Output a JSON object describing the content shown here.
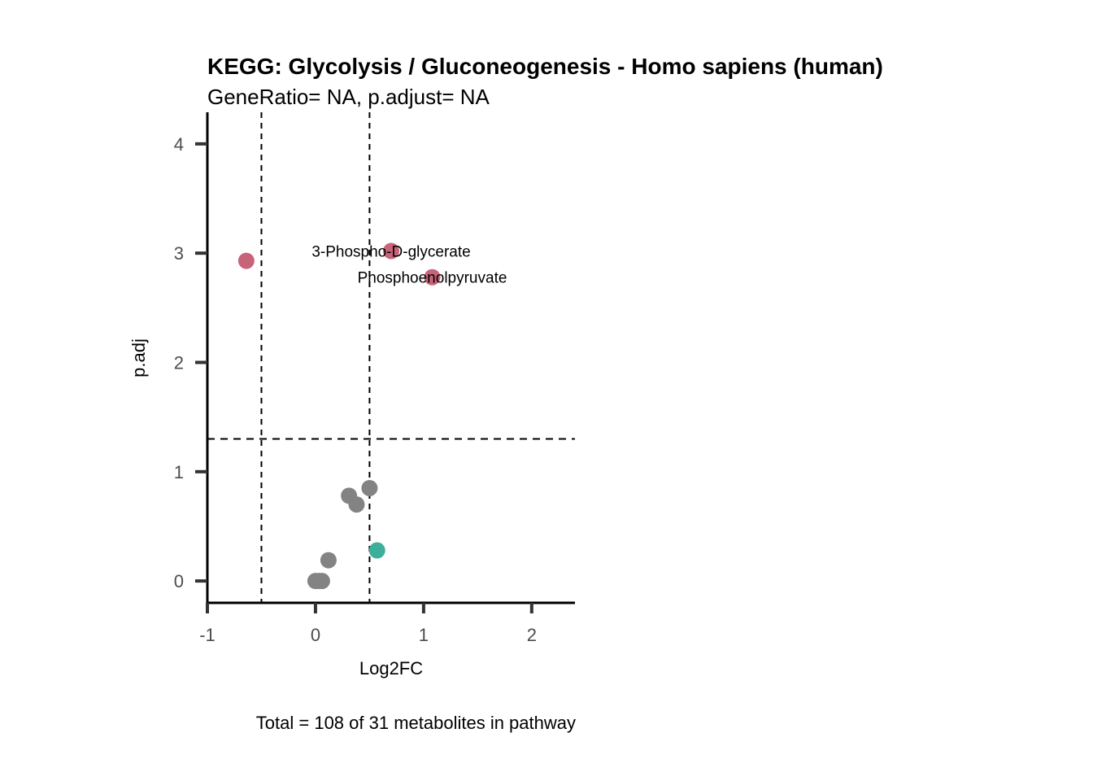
{
  "chart_data": {
    "type": "scatter",
    "title": "KEGG: Glycolysis / Gluconeogenesis - Homo sapiens (human)",
    "subtitle": "GeneRatio= NA, p.adjust= NA",
    "xlabel": "Log2FC",
    "ylabel": "p.adj",
    "caption": "Total = 108 of 31 metabolites in pathway",
    "xlim": [
      -1,
      2.4
    ],
    "ylim": [
      -0.2,
      4.2
    ],
    "x_ticks": [
      -1,
      0,
      1,
      2
    ],
    "y_ticks": [
      0,
      1,
      2,
      3,
      4
    ],
    "grid": false,
    "reference_lines": {
      "vertical": [
        -0.5,
        0.5
      ],
      "horizontal": [
        1.3
      ]
    },
    "colors": {
      "up": "#c8647a",
      "down": "#3eae9c",
      "ns": "#838383",
      "axis": "#000000",
      "ticks": "#333333"
    },
    "points": [
      {
        "x": -0.64,
        "y": 2.93,
        "group": "up",
        "label": ""
      },
      {
        "x": 0.7,
        "y": 3.02,
        "group": "up",
        "label": "3-Phospho-D-glycerate"
      },
      {
        "x": 1.08,
        "y": 2.78,
        "group": "up",
        "label": "Phosphoenolpyruvate"
      },
      {
        "x": 0.57,
        "y": 0.28,
        "group": "down",
        "label": ""
      },
      {
        "x": 0.5,
        "y": 0.85,
        "group": "ns",
        "label": ""
      },
      {
        "x": 0.31,
        "y": 0.78,
        "group": "ns",
        "label": ""
      },
      {
        "x": 0.38,
        "y": 0.7,
        "group": "ns",
        "label": ""
      },
      {
        "x": 0.12,
        "y": 0.19,
        "group": "ns",
        "label": ""
      },
      {
        "x": 0.0,
        "y": 0.0,
        "group": "ns",
        "label": ""
      },
      {
        "x": 0.06,
        "y": 0.0,
        "group": "ns",
        "label": ""
      },
      {
        "x": 0.03,
        "y": 0.0,
        "group": "ns",
        "label": ""
      }
    ]
  }
}
